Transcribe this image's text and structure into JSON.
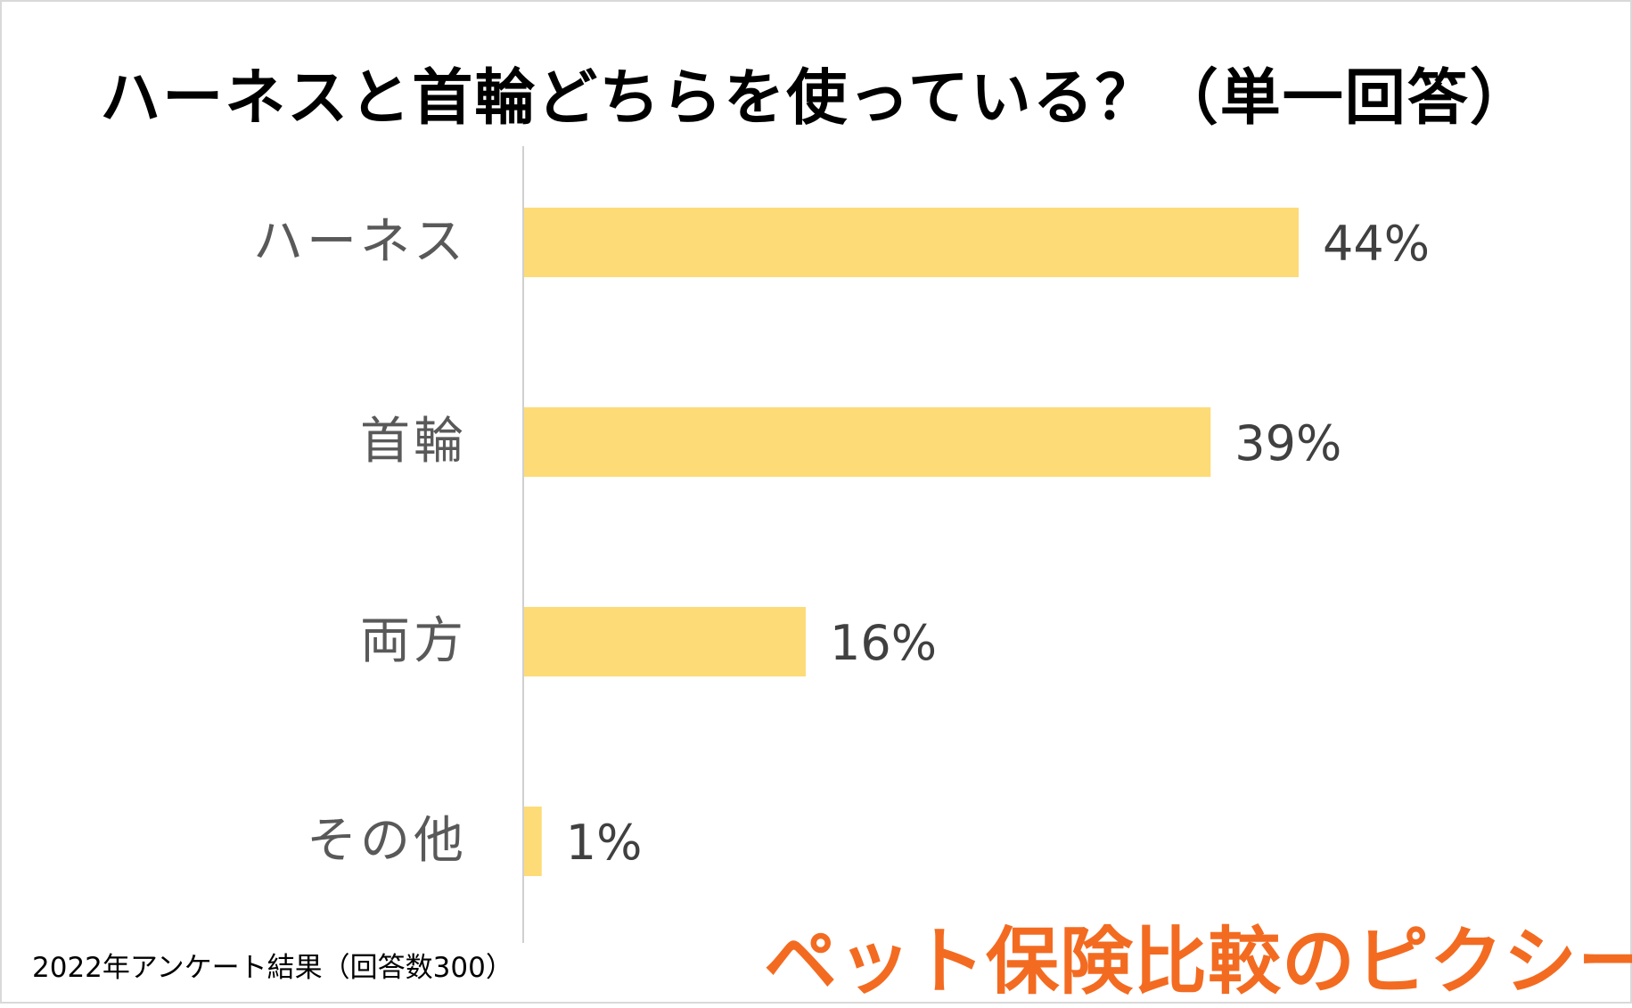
{
  "chart_data": {
    "type": "bar",
    "orientation": "horizontal",
    "title": "ハーネスと首輪どちらを使っている？（単一回答）",
    "categories": [
      "ハーネス",
      "首輪",
      "両方",
      "その他"
    ],
    "values": [
      44,
      39,
      16,
      1
    ],
    "value_labels": [
      "44%",
      "39%",
      "16%",
      "1%"
    ],
    "xlim": [
      0,
      50
    ],
    "grid": false,
    "legend": "none",
    "bar_color": "#fddb77"
  },
  "footer": {
    "note": "2022年アンケート結果（回答数300）",
    "brand": "ペット保険比較のピクシー",
    "brand_color": "#f36b21"
  }
}
